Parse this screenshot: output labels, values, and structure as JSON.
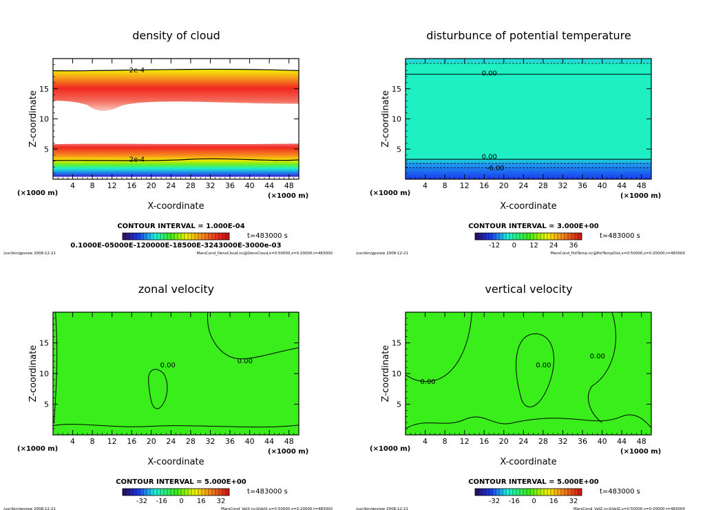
{
  "chart_data": [
    {
      "type": "heatmap",
      "title": "density of cloud",
      "xlabel": "X-coordinate",
      "ylabel": "Z-coordinate",
      "xunit": "(×1000 m)",
      "xlim": [
        0,
        50
      ],
      "ylim": [
        0,
        20
      ],
      "xticks": [
        "4",
        "8",
        "12",
        "16",
        "20",
        "24",
        "28",
        "32",
        "36",
        "40",
        "44",
        "48"
      ],
      "yticks": [
        "5",
        "10",
        "15"
      ],
      "contour_labels": [
        "2e-4",
        "2e-4"
      ],
      "contour_interval": "CONTOUR INTERVAL = 1.000E-04",
      "time": "t=483000  s",
      "colorbar_labels": "0.1000E-05000E-120000E-18500E-3243000E-3000e-03",
      "footer_left": "/usr/bin/gpview   2008-12-21",
      "footer_right": "MarsCond_DensCloud.nc@DensCloud,x=0:50000,z=0:20000,t=483000"
    },
    {
      "type": "heatmap",
      "title": "disturbunce of potential temperature",
      "xlabel": "X-coordinate",
      "ylabel": "Z-coordinate",
      "xunit": "(×1000 m)",
      "xlim": [
        0,
        50
      ],
      "ylim": [
        0,
        20
      ],
      "xticks": [
        "4",
        "8",
        "12",
        "16",
        "20",
        "24",
        "28",
        "32",
        "36",
        "40",
        "44",
        "48"
      ],
      "yticks": [
        "5",
        "10",
        "15"
      ],
      "contour_labels": [
        "0.00",
        "0.00",
        "-6.00"
      ],
      "contour_interval": "CONTOUR INTERVAL = 3.000E+00",
      "time": "t=483000  s",
      "colorbar_ticks": [
        "-12",
        "0",
        "12",
        "24",
        "36"
      ],
      "footer_left": "/usr/bin/gpview   2008-12-21",
      "footer_right": "MarsCond_PotTemp.nc@PotTempDist,x=0:50000,z=0:20000,t=483000"
    },
    {
      "type": "heatmap",
      "title": "zonal velocity",
      "xlabel": "X-coordinate",
      "ylabel": "Z-coordinate",
      "xunit": "(×1000 m)",
      "xlim": [
        0,
        50
      ],
      "ylim": [
        0,
        20
      ],
      "xticks": [
        "4",
        "8",
        "12",
        "16",
        "20",
        "24",
        "28",
        "32",
        "36",
        "40",
        "44",
        "48"
      ],
      "yticks": [
        "5",
        "10",
        "15"
      ],
      "contour_labels": [
        "0.00",
        "0.00"
      ],
      "contour_interval": "CONTOUR INTERVAL = 5.000E+00",
      "time": "t=483000  s",
      "colorbar_ticks": [
        "-32",
        "-16",
        "0",
        "16",
        "32"
      ],
      "footer_left": "/usr/bin/gpview   2008-12-21",
      "footer_right": "MarsCond_VelX.nc@VelX,x=0:50000,z=0:20000,t=483000"
    },
    {
      "type": "heatmap",
      "title": "vertical velocity",
      "xlabel": "X-coordinate",
      "ylabel": "Z-coordinate",
      "xunit": "(×1000 m)",
      "xlim": [
        0,
        50
      ],
      "ylim": [
        0,
        20
      ],
      "xticks": [
        "4",
        "8",
        "12",
        "16",
        "20",
        "24",
        "28",
        "32",
        "36",
        "40",
        "44",
        "48"
      ],
      "yticks": [
        "5",
        "10",
        "15"
      ],
      "contour_labels": [
        "0.00",
        "0.00",
        "0.00"
      ],
      "contour_interval": "CONTOUR INTERVAL = 5.000E+00",
      "time": "t=483000  s",
      "colorbar_ticks": [
        "-32",
        "-16",
        "0",
        "16",
        "32"
      ],
      "footer_left": "/usr/bin/gpview   2008-12-21",
      "footer_right": "MarsCond_VelZ.nc@VelZ,x=0:50000,z=0:20000,t=483000"
    }
  ],
  "colors": {
    "green_field": "#39ee1a",
    "cyan_field": "#1ff0c4",
    "blue_band": "#1c3cf0",
    "red_band": "#f0281e",
    "orange_band": "#f58a1e"
  }
}
